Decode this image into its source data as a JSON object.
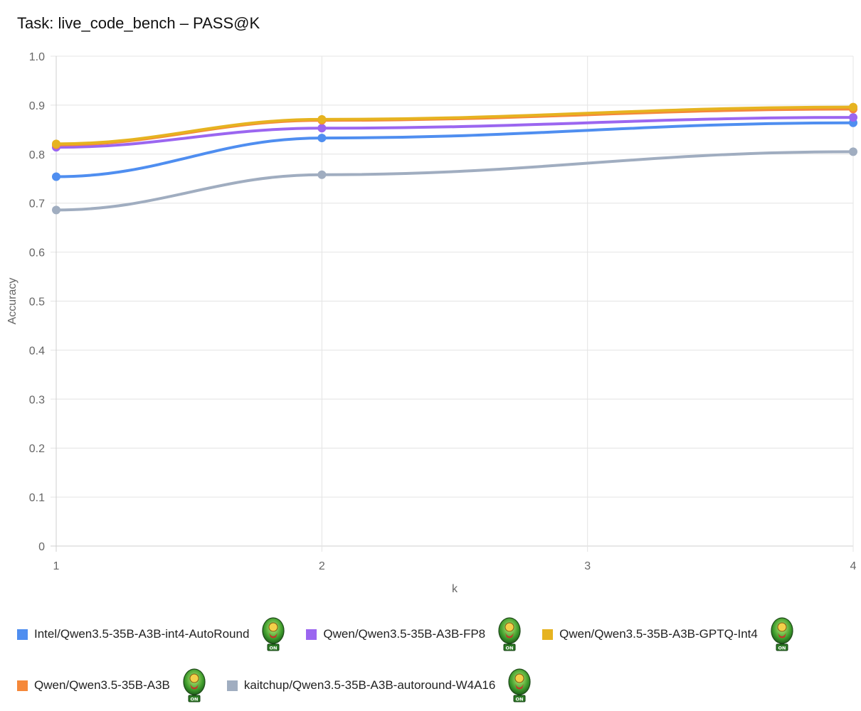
{
  "title": "Task: live_code_bench – PASS@K",
  "badge": {
    "icon": "onboard-award-icon",
    "text": "ON"
  },
  "chart_data": {
    "type": "line",
    "title": "Task: live_code_bench – PASS@K",
    "xlabel": "k",
    "ylabel": "Accuracy",
    "x": [
      1,
      2,
      3,
      4
    ],
    "x_tick_labels": [
      "1",
      "2",
      "3",
      "4"
    ],
    "ylim": [
      0,
      1
    ],
    "y_tick_labels": [
      "0",
      "0.1",
      "0.2",
      "0.3",
      "0.4",
      "0.5",
      "0.6",
      "0.7",
      "0.8",
      "0.9",
      "1.0"
    ],
    "grid": true,
    "legend_position": "bottom",
    "series": [
      {
        "name": "Intel/Qwen3.5-35B-A3B-int4-AutoRound",
        "color": "#4f8ef0",
        "x": [
          1,
          2,
          4
        ],
        "values": [
          0.754,
          0.833,
          0.864
        ]
      },
      {
        "name": "Qwen/Qwen3.5-35B-A3B-FP8",
        "color": "#9b66f0",
        "x": [
          1,
          2,
          4
        ],
        "values": [
          0.814,
          0.853,
          0.875
        ]
      },
      {
        "name": "Qwen/Qwen3.5-35B-A3B-GPTQ-Int4",
        "color": "#e6b320",
        "x": [
          1,
          2,
          4
        ],
        "values": [
          0.821,
          0.871,
          0.896
        ]
      },
      {
        "name": "Qwen/Qwen3.5-35B-A3B",
        "color": "#f5883a",
        "x": [
          1,
          2,
          4
        ],
        "values": [
          0.819,
          0.869,
          0.892
        ]
      },
      {
        "name": "kaitchup/Qwen3.5-35B-A3B-autoround-W4A16",
        "color": "#a0adc0",
        "x": [
          1,
          2,
          4
        ],
        "values": [
          0.686,
          0.758,
          0.805
        ]
      }
    ]
  }
}
